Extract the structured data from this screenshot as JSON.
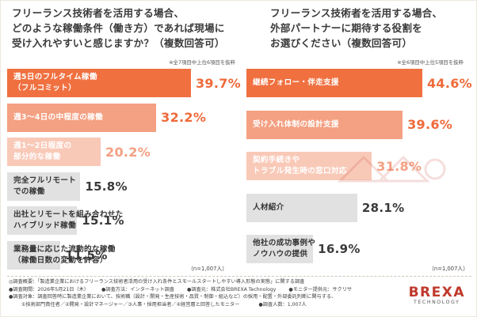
{
  "colors": {
    "top1": "#f07040",
    "top2": "#f4a082",
    "top3": "#f9c9b8",
    "gray": "#e1e1e1",
    "value_orange": "#ef6a3a",
    "value_dark": "#3a3a3a",
    "brand_red": "#c0392b"
  },
  "chart_data": [
    {
      "type": "bar",
      "title": "フリーランス技術者を活用する場合、\nどのような稼働条件（働き方）であれば現場に\n受け入れやすいと感じますか？（複数回答可）",
      "note": "※全7項目中上位6項目を抜粋",
      "categories": [
        "週5日のフルタイム稼働\n（フルコミット）",
        "週3〜4日の中程度の稼働",
        "週1〜2日程度の\n部分的な稼働",
        "完全フルリモート\nでの稼働",
        "出社とリモートを組み合わせた\nハイブリッド稼働",
        "業務量に応じた流動的な稼働\n（稼働日数の変動を許容）"
      ],
      "values": [
        39.7,
        32.2,
        20.2,
        15.8,
        15.1,
        11.5
      ],
      "value_labels": [
        "39.7%",
        "32.2%",
        "20.2%",
        "15.8%",
        "15.1%",
        "11.5%"
      ],
      "unit": "%",
      "n": "（n=1,007人）"
    },
    {
      "type": "bar",
      "title": "フリーランス技術者を活用する場合、\n外部パートナーに期待する役割を\nお選びください（複数回答可）",
      "note": "※全6項目中上位5項目を抜粋",
      "categories": [
        "継続フォロー・伴走支援",
        "受け入れ体制の設計支援",
        "契約手続きや\nトラブル発生時の窓口対応",
        "人材紹介",
        "他社の成功事例や\nノウハウの提供"
      ],
      "values": [
        44.6,
        39.6,
        31.8,
        28.1,
        16.9
      ],
      "value_labels": [
        "44.6%",
        "39.6%",
        "31.8%",
        "28.1%",
        "16.9%"
      ],
      "unit": "%",
      "n": "（n=1,007人）"
    }
  ],
  "footer": {
    "line1": "◎調査概要：「製造業企業におけるフリーランス技術者活用の受け入れ条件とスモールスタートしやすい導入形態の実態」に関する調査",
    "line2a": "●調査期間：2026年5月21日（木）",
    "line2b": "●調査方法：インターネット調査",
    "line2c": "●調査元：株式会社BREXA Technology",
    "line2d": "●モニター提供元：サクリサ",
    "line3": "●調査対象：調査回答時に製造業企業において、技術職（設計・開発・生産技術・品質・制御・組込など）の採用・配置・外部委託判断に関与する、",
    "line4a": "①技術部門責任者／②開発・設計マネージャー／③人事・採用担当者／④経営層と回答したモニター",
    "line4b": "●調査人数：1,007人"
  },
  "logo": {
    "main": "BREXA",
    "sub": "TECHNOLOGY"
  }
}
